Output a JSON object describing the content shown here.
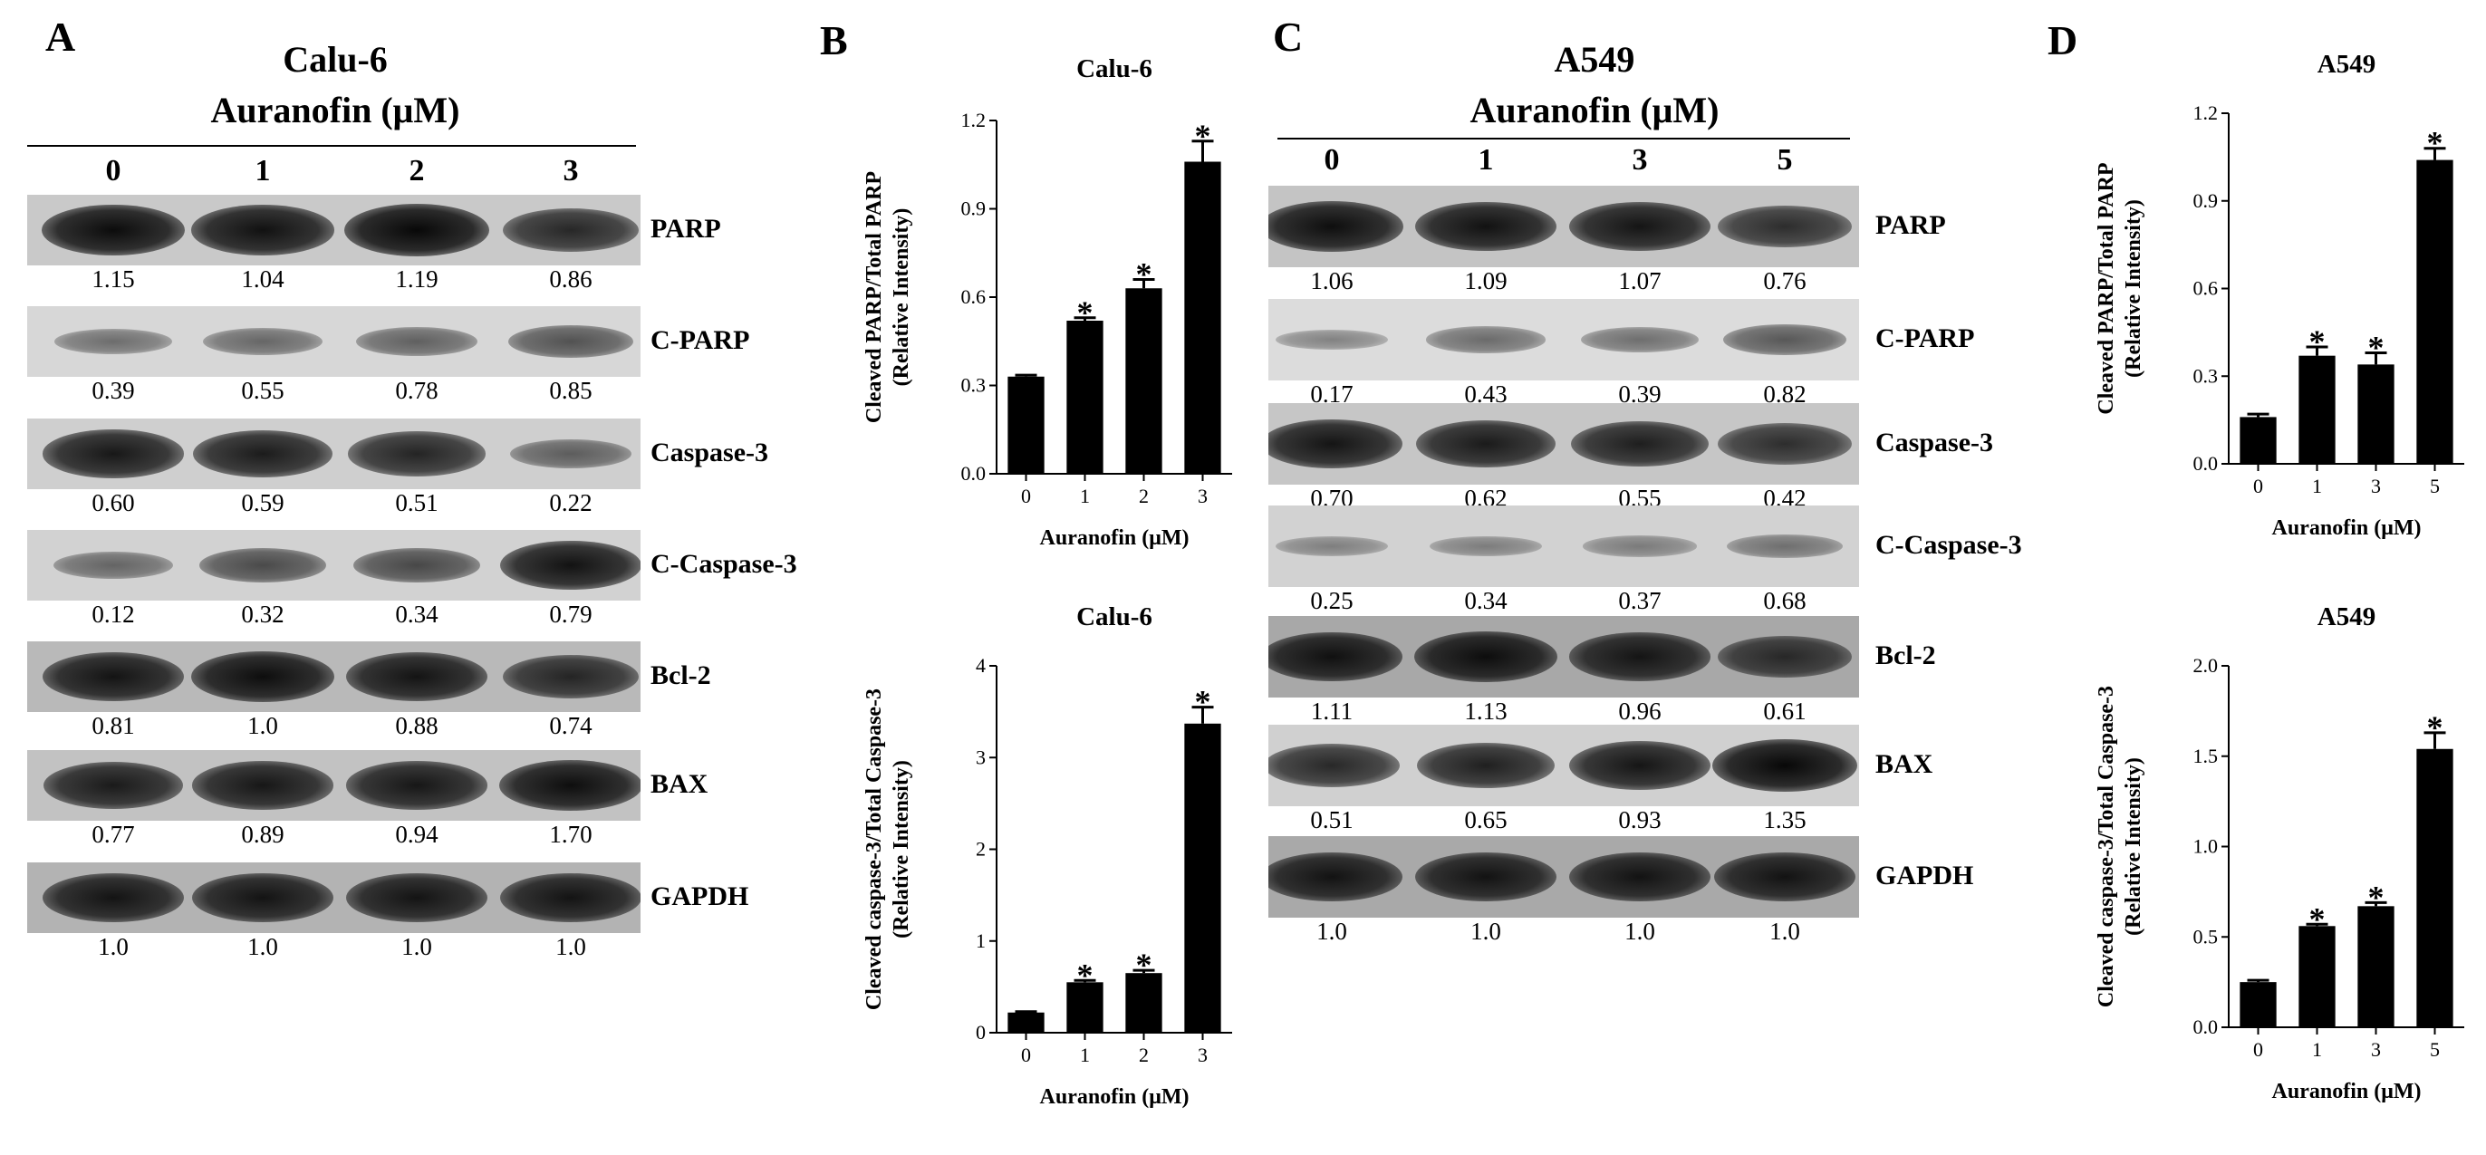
{
  "panels": {
    "A": {
      "letter": "A",
      "cell": "Calu-6",
      "treatment": "Auranofin (μM)",
      "lanes": [
        "0",
        "1",
        "2",
        "3"
      ],
      "blots": [
        {
          "label": "PARP",
          "values": [
            "1.15",
            "1.04",
            "1.19",
            "0.86"
          ],
          "intensity": [
            0.97,
            0.93,
            1.0,
            0.75
          ],
          "bg": "#c9c9c9"
        },
        {
          "label": "C-PARP",
          "values": [
            "0.39",
            "0.55",
            "0.78",
            "0.85"
          ],
          "intensity": [
            0.25,
            0.3,
            0.35,
            0.45
          ],
          "bg": "#d7d7d7"
        },
        {
          "label": "Caspase-3",
          "values": [
            "0.60",
            "0.59",
            "0.51",
            "0.22"
          ],
          "intensity": [
            0.88,
            0.85,
            0.78,
            0.35
          ],
          "bg": "#cfcfcf"
        },
        {
          "label": "C-Caspase-3",
          "values": [
            "0.12",
            "0.32",
            "0.34",
            "0.79"
          ],
          "intensity": [
            0.3,
            0.5,
            0.52,
            0.92
          ],
          "bg": "#d2d2d2"
        },
        {
          "label": "Bcl-2",
          "values": [
            "0.81",
            "1.0",
            "0.88",
            "0.74"
          ],
          "intensity": [
            0.9,
            0.95,
            0.9,
            0.75
          ],
          "bg": "#b9b9b9"
        },
        {
          "label": "BAX",
          "values": [
            "0.77",
            "0.89",
            "0.94",
            "1.70"
          ],
          "intensity": [
            0.85,
            0.88,
            0.88,
            0.95
          ],
          "bg": "#c2c2c2"
        },
        {
          "label": "GAPDH",
          "values": [
            "1.0",
            "1.0",
            "1.0",
            "1.0"
          ],
          "intensity": [
            0.9,
            0.9,
            0.9,
            0.9
          ],
          "bg": "#b3b3b3"
        }
      ]
    },
    "C": {
      "letter": "C",
      "cell": "A549",
      "treatment": "Auranofin (μM)",
      "lanes": [
        "0",
        "1",
        "3",
        "5"
      ],
      "blots": [
        {
          "label": "PARP",
          "values": [
            "1.06",
            "1.09",
            "1.07",
            "0.76"
          ],
          "intensity": [
            0.95,
            0.92,
            0.9,
            0.7
          ],
          "bg": "#c4c4c4"
        },
        {
          "label": "C-PARP",
          "values": [
            "0.17",
            "0.43",
            "0.39",
            "0.82"
          ],
          "intensity": [
            0.12,
            0.28,
            0.26,
            0.42
          ],
          "bg": "#dcdcdc"
        },
        {
          "label": "Caspase-3",
          "values": [
            "0.70",
            "0.62",
            "0.55",
            "0.42"
          ],
          "intensity": [
            0.9,
            0.85,
            0.82,
            0.7
          ],
          "bg": "#c6c6c6"
        },
        {
          "label": "C-Caspase-3",
          "values": [
            "0.25",
            "0.34",
            "0.37",
            "0.68"
          ],
          "intensity": [
            0.1,
            0.12,
            0.13,
            0.22
          ],
          "bg": "#d2d2d2"
        },
        {
          "label": "Bcl-2",
          "values": [
            "1.11",
            "1.13",
            "0.96",
            "0.61"
          ],
          "intensity": [
            0.92,
            0.95,
            0.88,
            0.7
          ],
          "bg": "#a8a8a8"
        },
        {
          "label": "BAX",
          "values": [
            "0.51",
            "0.65",
            "0.93",
            "1.35"
          ],
          "intensity": [
            0.75,
            0.82,
            0.9,
            1.0
          ],
          "bg": "#d0d0d0"
        },
        {
          "label": "GAPDH",
          "values": [
            "1.0",
            "1.0",
            "1.0",
            "1.0"
          ],
          "intensity": [
            0.9,
            0.9,
            0.9,
            0.9
          ],
          "bg": "#a9a9a9"
        }
      ]
    },
    "B": {
      "letter": "B"
    },
    "D": {
      "letter": "D"
    }
  },
  "chart_data": [
    {
      "id": "B-top",
      "type": "bar",
      "title": "Calu-6",
      "categories": [
        "0",
        "1",
        "2",
        "3"
      ],
      "values": [
        0.33,
        0.52,
        0.63,
        1.06
      ],
      "errors": [
        0.005,
        0.01,
        0.03,
        0.07
      ],
      "significant": [
        false,
        true,
        true,
        true
      ],
      "star_symbol": "*",
      "ylabel_lines": [
        "Cleaved PARP/Total PARP",
        "(Relative Intensity)"
      ],
      "xlabel": "Auranofin (μM)",
      "ylim": [
        0,
        1.2
      ],
      "yticks": [
        "0.0",
        "0.3",
        "0.6",
        "0.9",
        "1.2"
      ]
    },
    {
      "id": "B-bottom",
      "type": "bar",
      "title": "Calu-6",
      "categories": [
        "0",
        "1",
        "2",
        "3"
      ],
      "values": [
        0.22,
        0.55,
        0.65,
        3.37
      ],
      "errors": [
        0.01,
        0.02,
        0.03,
        0.18
      ],
      "significant": [
        false,
        true,
        true,
        true
      ],
      "star_symbol": "*",
      "ylabel_lines": [
        "Cleaved caspase-3/Total Caspase-3",
        "(Relative Intensity)"
      ],
      "xlabel": "Auranofin (μM)",
      "ylim": [
        0,
        4
      ],
      "yticks": [
        "0",
        "1",
        "2",
        "3",
        "4"
      ]
    },
    {
      "id": "D-top",
      "type": "bar",
      "title": "A549",
      "categories": [
        "0",
        "1",
        "3",
        "5"
      ],
      "values": [
        0.16,
        0.37,
        0.34,
        1.04
      ],
      "errors": [
        0.01,
        0.03,
        0.04,
        0.04
      ],
      "significant": [
        false,
        true,
        true,
        true
      ],
      "star_symbol": "*",
      "ylabel_lines": [
        "Cleaved PARP/Total PARP",
        "(Relative Intensity)"
      ],
      "xlabel": "Auranofin (μM)",
      "ylim": [
        0,
        1.2
      ],
      "yticks": [
        "0.0",
        "0.3",
        "0.6",
        "0.9",
        "1.2"
      ]
    },
    {
      "id": "D-bottom",
      "type": "bar",
      "title": "A549",
      "categories": [
        "0",
        "1",
        "3",
        "5"
      ],
      "values": [
        0.25,
        0.56,
        0.67,
        1.54
      ],
      "errors": [
        0.01,
        0.01,
        0.02,
        0.09
      ],
      "significant": [
        false,
        true,
        true,
        true
      ],
      "star_symbol": "*",
      "ylabel_lines": [
        "Cleaved caspase-3/Total Caspase-3",
        "(Relative Intensity)"
      ],
      "xlabel": "Auranofin (μM)",
      "ylim": [
        0,
        2.0
      ],
      "yticks": [
        "0.0",
        "0.5",
        "1.0",
        "1.5",
        "2.0"
      ]
    }
  ]
}
